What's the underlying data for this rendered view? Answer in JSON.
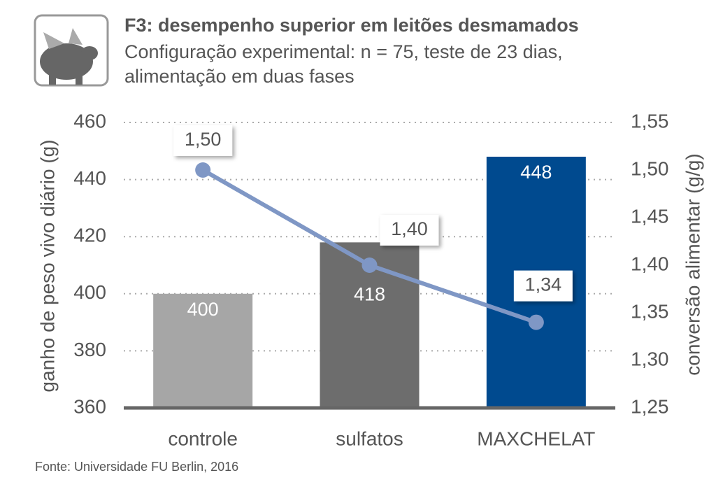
{
  "chart_data": {
    "type": "bar",
    "title": "F3: desempenho superior em leitões desmamados",
    "subtitle": [
      "Configuração experimental: n = 75, teste de 23 dias,",
      "alimentação em duas fases"
    ],
    "ylabel": "ganho de peso vivo diário (g)",
    "y2label": "conversão alimentar (g/g)",
    "categories": [
      "controle",
      "sulfatos",
      "MAXCHELAT"
    ],
    "series": [
      {
        "type": "bar",
        "values": [
          400,
          418,
          448
        ],
        "colors": [
          "#a6a6a6",
          "#6d6d6d",
          "#004a8f"
        ]
      },
      {
        "type": "line",
        "axis": "y2",
        "values": [
          1.5,
          1.4,
          1.34
        ],
        "value_labels": [
          "1,50",
          "1,40",
          "1,34"
        ],
        "color": "#7f97c5"
      }
    ],
    "ylim": [
      360,
      460
    ],
    "yticks": [
      360,
      380,
      400,
      420,
      440,
      460
    ],
    "y2lim": [
      1.25,
      1.55
    ],
    "y2ticks": [
      {
        "value": 1.25,
        "label": "1,25"
      },
      {
        "value": 1.3,
        "label": "1,30"
      },
      {
        "value": 1.35,
        "label": "1,35"
      },
      {
        "value": 1.4,
        "label": "1,40"
      },
      {
        "value": 1.45,
        "label": "1,45"
      },
      {
        "value": 1.5,
        "label": "1,50"
      },
      {
        "value": 1.55,
        "label": "1,55"
      }
    ],
    "grid": true,
    "source": "Fonte: Universidade FU Berlin, 2016"
  }
}
